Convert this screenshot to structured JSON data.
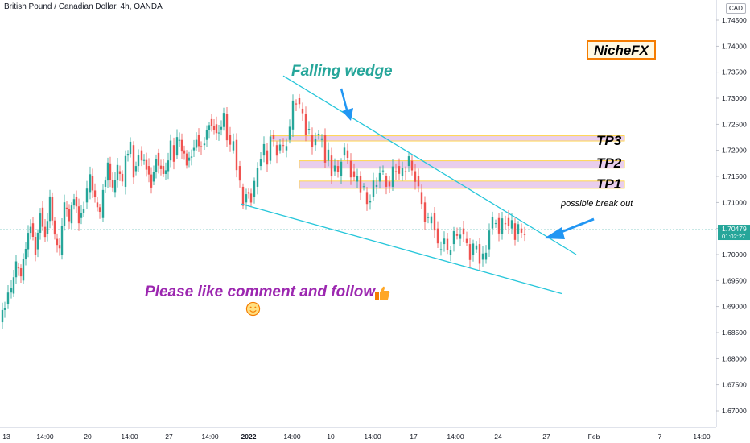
{
  "header": {
    "symbol_title": "British Pound / Canadian Dollar, 4h, OANDA",
    "currency": "CAD"
  },
  "price_tag": {
    "price": "1.70479",
    "countdown": "01:02:27",
    "color": "#26a69a"
  },
  "annotations": {
    "falling_wedge": "Falling wedge",
    "brand": "NicheFX",
    "tp3": "TP3",
    "tp2": "TP2",
    "tp1": "TP1",
    "possible_break_out": "possible break out",
    "please_like": "Please like comment and follow",
    "thumbs_up_icon": "thumbs-up-icon",
    "smiley_icon": "smiley-icon"
  },
  "colors": {
    "bull": "#26a69a",
    "bear": "#ef5350",
    "wedge_line": "#26c6da",
    "tp_zone_fill": "#e1bee7",
    "tp_zone_border": "#ffd54f",
    "arrow": "#2196f3",
    "follow_text": "#9c27b0",
    "wedge_text": "#26a69a",
    "brand_border": "#f57c00"
  },
  "chart_data": {
    "type": "candlestick",
    "title": "British Pound / Canadian Dollar, 4h, OANDA",
    "ylabel": "CAD",
    "ylim": [
      1.665,
      1.748
    ],
    "y_ticks": [
      "1.74500",
      "1.74000",
      "1.73500",
      "1.73000",
      "1.72500",
      "1.72000",
      "1.71500",
      "1.71000",
      "1.70500",
      "1.70000",
      "1.69500",
      "1.69000",
      "1.68500",
      "1.68000",
      "1.67500",
      "1.67000"
    ],
    "x_ticks": [
      {
        "label": "13",
        "bold": false
      },
      {
        "label": "14:00",
        "bold": false
      },
      {
        "label": "20",
        "bold": false
      },
      {
        "label": "14:00",
        "bold": false
      },
      {
        "label": "27",
        "bold": false
      },
      {
        "label": "14:00",
        "bold": false
      },
      {
        "label": "2022",
        "bold": true
      },
      {
        "label": "14:00",
        "bold": false
      },
      {
        "label": "10",
        "bold": false
      },
      {
        "label": "14:00",
        "bold": false
      },
      {
        "label": "17",
        "bold": false
      },
      {
        "label": "14:00",
        "bold": false
      },
      {
        "label": "24",
        "bold": false
      },
      {
        "label": "27",
        "bold": false
      },
      {
        "label": "Feb",
        "bold": false
      },
      {
        "label": "7",
        "bold": false
      },
      {
        "label": "14:00",
        "bold": false
      }
    ],
    "last_price": 1.70479,
    "tp_levels": {
      "TP3": [
        1.7218,
        1.7228
      ],
      "TP2": [
        1.7166,
        1.718
      ],
      "TP1": [
        1.7127,
        1.7141
      ]
    },
    "close_path": [
      [
        0,
        1.687
      ],
      [
        6,
        1.6905
      ],
      [
        14,
        1.6925
      ],
      [
        20,
        1.6975
      ],
      [
        26,
        1.695
      ],
      [
        32,
        1.701
      ],
      [
        38,
        1.706
      ],
      [
        44,
        1.701
      ],
      [
        50,
        1.709
      ],
      [
        56,
        1.704
      ],
      [
        62,
        1.711
      ],
      [
        68,
        1.703
      ],
      [
        74,
        1.7
      ],
      [
        80,
        1.709
      ],
      [
        86,
        1.706
      ],
      [
        92,
        1.711
      ],
      [
        98,
        1.707
      ],
      [
        104,
        1.71
      ],
      [
        108,
        1.712
      ],
      [
        112,
        1.715
      ],
      [
        118,
        1.71
      ],
      [
        124,
        1.707
      ],
      [
        128,
        1.713
      ],
      [
        134,
        1.7175
      ],
      [
        140,
        1.712
      ],
      [
        146,
        1.716
      ],
      [
        152,
        1.713
      ],
      [
        156,
        1.719
      ],
      [
        162,
        1.721
      ],
      [
        166,
        1.716
      ],
      [
        172,
        1.72
      ],
      [
        176,
        1.718
      ],
      [
        182,
        1.717
      ],
      [
        188,
        1.714
      ],
      [
        194,
        1.7195
      ],
      [
        200,
        1.717
      ],
      [
        206,
        1.716
      ],
      [
        212,
        1.721
      ],
      [
        216,
        1.719
      ],
      [
        220,
        1.722
      ],
      [
        226,
        1.72
      ],
      [
        232,
        1.718
      ],
      [
        238,
        1.72
      ],
      [
        244,
        1.723
      ],
      [
        250,
        1.721
      ],
      [
        254,
        1.722
      ],
      [
        260,
        1.726
      ],
      [
        266,
        1.725
      ],
      [
        272,
        1.724
      ],
      [
        278,
        1.727
      ],
      [
        282,
        1.723
      ],
      [
        286,
        1.72
      ],
      [
        290,
        1.722
      ],
      [
        294,
        1.717
      ],
      [
        298,
        1.713
      ],
      [
        302,
        1.71
      ],
      [
        306,
        1.712
      ],
      [
        312,
        1.711
      ],
      [
        316,
        1.713
      ],
      [
        320,
        1.717
      ],
      [
        324,
        1.719
      ],
      [
        328,
        1.72
      ],
      [
        332,
        1.718
      ],
      [
        336,
        1.723
      ],
      [
        340,
        1.721
      ],
      [
        344,
        1.72
      ],
      [
        348,
        1.721
      ],
      [
        352,
        1.72
      ],
      [
        356,
        1.722
      ],
      [
        360,
        1.724
      ],
      [
        364,
        1.729
      ],
      [
        368,
        1.73
      ],
      [
        372,
        1.728
      ],
      [
        376,
        1.727
      ],
      [
        380,
        1.724
      ],
      [
        384,
        1.723
      ],
      [
        388,
        1.721
      ],
      [
        392,
        1.723
      ],
      [
        396,
        1.722
      ],
      [
        400,
        1.723
      ],
      [
        404,
        1.718
      ],
      [
        408,
        1.719
      ],
      [
        412,
        1.716
      ],
      [
        416,
        1.717
      ],
      [
        420,
        1.715
      ],
      [
        424,
        1.719
      ],
      [
        428,
        1.72
      ],
      [
        432,
        1.718
      ],
      [
        436,
        1.716
      ],
      [
        440,
        1.714
      ],
      [
        444,
        1.715
      ],
      [
        448,
        1.713
      ],
      [
        452,
        1.712
      ],
      [
        456,
        1.71
      ],
      [
        460,
        1.711
      ],
      [
        464,
        1.713
      ],
      [
        468,
        1.714
      ],
      [
        472,
        1.716
      ],
      [
        476,
        1.715
      ],
      [
        480,
        1.714
      ],
      [
        484,
        1.713
      ],
      [
        488,
        1.716
      ],
      [
        492,
        1.717
      ],
      [
        496,
        1.715
      ],
      [
        500,
        1.716
      ],
      [
        504,
        1.717
      ],
      [
        508,
        1.718
      ],
      [
        512,
        1.716
      ],
      [
        516,
        1.715
      ],
      [
        520,
        1.712
      ],
      [
        524,
        1.71
      ],
      [
        528,
        1.707
      ],
      [
        532,
        1.706
      ],
      [
        536,
        1.708
      ],
      [
        540,
        1.705
      ],
      [
        544,
        1.701
      ],
      [
        548,
        1.702
      ],
      [
        552,
        1.703
      ],
      [
        556,
        1.7
      ],
      [
        560,
        1.702
      ],
      [
        564,
        1.704
      ],
      [
        568,
        1.703
      ],
      [
        572,
        1.705
      ],
      [
        576,
        1.703
      ],
      [
        580,
        1.702
      ],
      [
        584,
        1.7
      ],
      [
        588,
        1.701
      ],
      [
        592,
        1.702
      ],
      [
        596,
        1.699
      ],
      [
        600,
        1.699
      ],
      [
        604,
        1.701
      ],
      [
        608,
        1.705
      ],
      [
        612,
        1.706
      ],
      [
        616,
        1.707
      ],
      [
        620,
        1.704
      ],
      [
        624,
        1.706
      ],
      [
        628,
        1.707
      ],
      [
        632,
        1.705
      ],
      [
        636,
        1.706
      ],
      [
        640,
        1.704
      ],
      [
        644,
        1.705
      ],
      [
        648,
        1.704
      ],
      [
        652,
        1.7048
      ]
    ],
    "wedge_upper": [
      [
        352,
        1.7343
      ],
      [
        716,
        1.7
      ]
    ],
    "wedge_lower": [
      [
        300,
        1.7097
      ],
      [
        698,
        1.6925
      ]
    ]
  }
}
